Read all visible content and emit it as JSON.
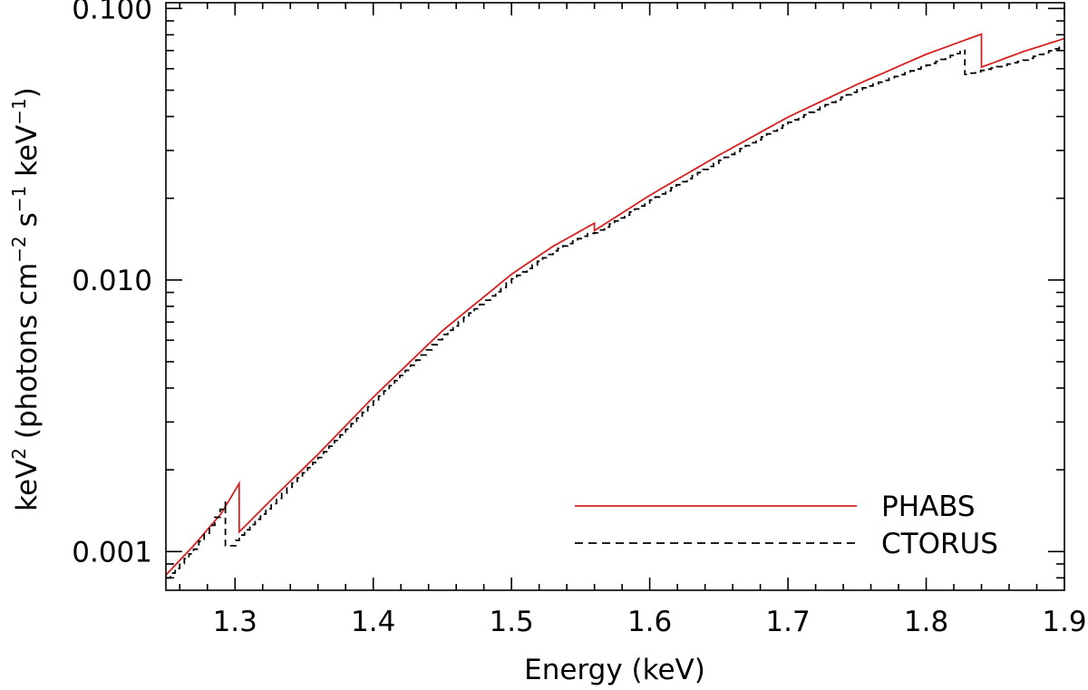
{
  "chart_data": {
    "type": "line",
    "xlabel": "Energy (keV)",
    "ylabel": {
      "unit": "keV",
      "unit_exponent": "2",
      "rest_a": " (photons cm",
      "exp_a": "−2",
      "rest_b": " s",
      "exp_b": "−1",
      "rest_c": " keV",
      "exp_c": "−1",
      "rest_d": ")"
    },
    "xlim": [
      1.25,
      1.9
    ],
    "ylim": [
      0.00072,
      0.105
    ],
    "yscale": "log",
    "x_ticks": [
      1.3,
      1.4,
      1.5,
      1.6,
      1.7,
      1.8,
      1.9
    ],
    "x_tick_labels": [
      "1.3",
      "1.4",
      "1.5",
      "1.6",
      "1.7",
      "1.8",
      "1.9"
    ],
    "y_ticks": [
      0.001,
      0.01,
      0.1
    ],
    "y_tick_labels": [
      "0.001",
      "0.010",
      "0.100"
    ],
    "legend_position": "bottom-right",
    "series": [
      {
        "name": "PHABS",
        "color": "#d62020",
        "style": "solid",
        "points": [
          [
            1.25,
            0.00082
          ],
          [
            1.27,
            0.00105
          ],
          [
            1.29,
            0.00138
          ],
          [
            1.303,
            0.00178
          ],
          [
            1.303,
            0.00118
          ],
          [
            1.33,
            0.00162
          ],
          [
            1.36,
            0.00228
          ],
          [
            1.4,
            0.0037
          ],
          [
            1.45,
            0.0065
          ],
          [
            1.5,
            0.0105
          ],
          [
            1.53,
            0.0133
          ],
          [
            1.56,
            0.0162
          ],
          [
            1.56,
            0.0152
          ],
          [
            1.6,
            0.0205
          ],
          [
            1.65,
            0.0288
          ],
          [
            1.7,
            0.0398
          ],
          [
            1.75,
            0.0525
          ],
          [
            1.8,
            0.0678
          ],
          [
            1.84,
            0.0805
          ],
          [
            1.84,
            0.0608
          ],
          [
            1.87,
            0.0693
          ],
          [
            1.9,
            0.0775
          ]
        ]
      },
      {
        "name": "CTORUS",
        "color": "#000000",
        "style": "dashed",
        "points": [
          [
            1.25,
            0.0008
          ],
          [
            1.27,
            0.00102
          ],
          [
            1.293,
            0.00153
          ],
          [
            1.293,
            0.00105
          ],
          [
            1.298,
            0.00105
          ],
          [
            1.303,
            0.00115
          ],
          [
            1.33,
            0.00157
          ],
          [
            1.36,
            0.00222
          ],
          [
            1.4,
            0.00358
          ],
          [
            1.45,
            0.0063
          ],
          [
            1.5,
            0.0101
          ],
          [
            1.53,
            0.0128
          ],
          [
            1.555,
            0.0148
          ],
          [
            1.56,
            0.0149
          ],
          [
            1.6,
            0.0197
          ],
          [
            1.65,
            0.0276
          ],
          [
            1.7,
            0.0381
          ],
          [
            1.75,
            0.0502
          ],
          [
            1.8,
            0.0618
          ],
          [
            1.828,
            0.0705
          ],
          [
            1.828,
            0.0572
          ],
          [
            1.87,
            0.0645
          ],
          [
            1.9,
            0.0733
          ]
        ]
      }
    ]
  }
}
